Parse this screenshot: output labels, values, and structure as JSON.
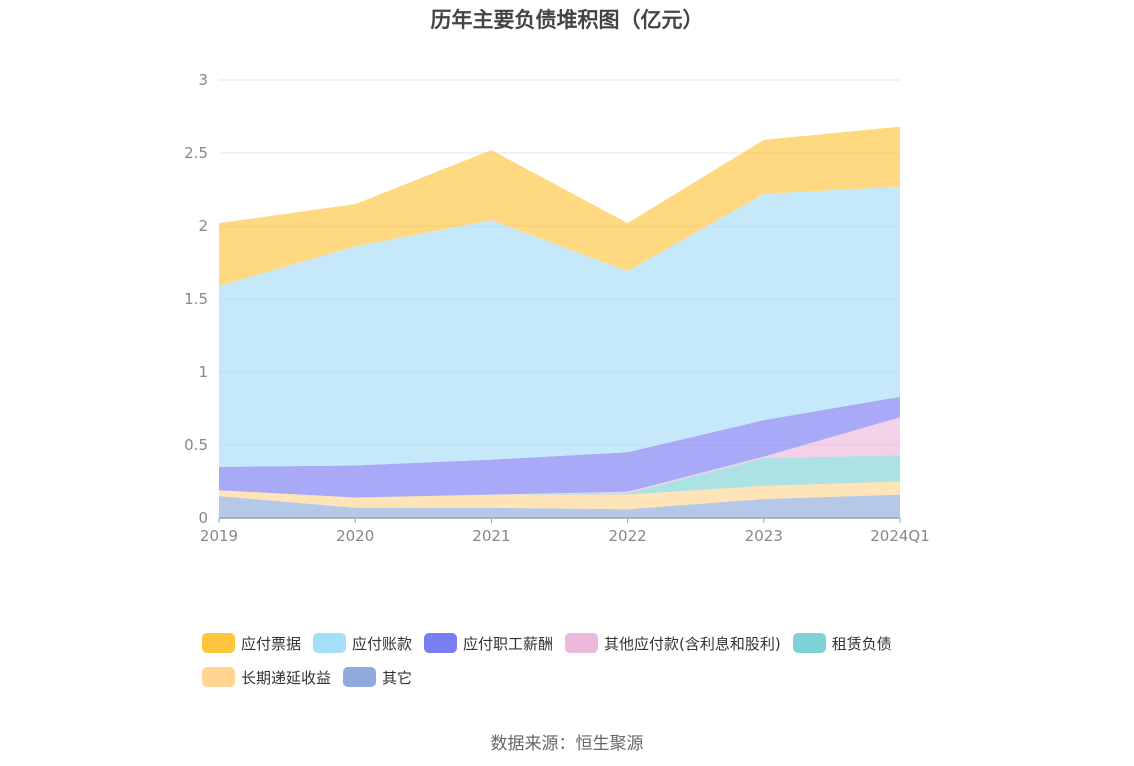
{
  "chart_data": {
    "type": "area",
    "stacked": true,
    "title": "历年主要负债堆积图（亿元）",
    "categories": [
      "2019",
      "2020",
      "2021",
      "2022",
      "2023",
      "2024Q1"
    ],
    "y_ticks": [
      "0",
      "0.5",
      "1",
      "1.5",
      "2",
      "2.5",
      "3"
    ],
    "ylim": [
      0,
      3
    ],
    "grid": true,
    "legend_position": "bottom",
    "series": [
      {
        "name": "其它",
        "color": "#8FAADC",
        "values": [
          0.15,
          0.07,
          0.07,
          0.06,
          0.13,
          0.16
        ]
      },
      {
        "name": "长期递延收益",
        "color": "#FFD591",
        "values": [
          0.04,
          0.07,
          0.09,
          0.1,
          0.09,
          0.09
        ]
      },
      {
        "name": "租赁负债",
        "color": "#7FD3D6",
        "values": [
          0.0,
          0.0,
          0.0,
          0.01,
          0.19,
          0.18
        ]
      },
      {
        "name": "其他应付款(含利息和股利)",
        "color": "#ECB8DC",
        "values": [
          0.0,
          0.0,
          0.0,
          0.01,
          0.01,
          0.26
        ]
      },
      {
        "name": "应付职工薪酬",
        "color": "#7B7DF2",
        "values": [
          0.16,
          0.22,
          0.24,
          0.27,
          0.25,
          0.14
        ]
      },
      {
        "name": "应付账款",
        "color": "#A6DDF7",
        "values": [
          1.24,
          1.5,
          1.64,
          1.24,
          1.55,
          1.44
        ]
      },
      {
        "name": "应付票据",
        "color": "#FFC53D",
        "values": [
          0.43,
          0.29,
          0.48,
          0.33,
          0.37,
          0.41
        ]
      }
    ],
    "legend_order": [
      "应付票据",
      "应付账款",
      "应付职工薪酬",
      "其他应付款(含利息和股利)",
      "租赁负债",
      "长期递延收益",
      "其它"
    ]
  },
  "source": "数据来源：恒生聚源"
}
